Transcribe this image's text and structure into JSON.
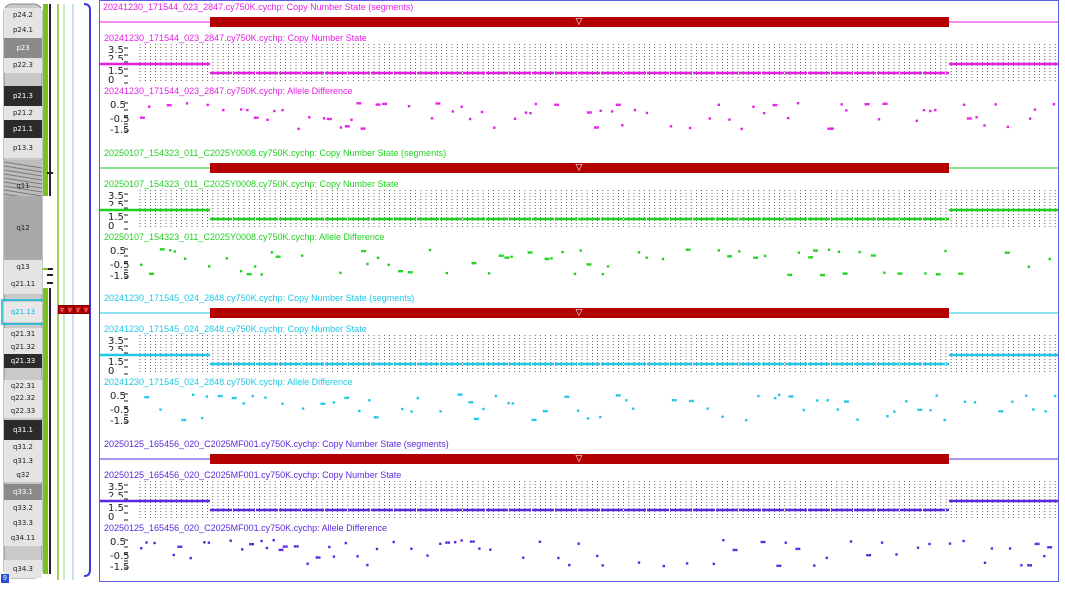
{
  "chromosome": {
    "number": "9",
    "bands": [
      {
        "name": "p24.2",
        "stain": "light"
      },
      {
        "name": "p24.1",
        "stain": "light"
      },
      {
        "name": "p23",
        "stain": "mid"
      },
      {
        "name": "p22.3",
        "stain": "light"
      },
      {
        "name": "p21.3",
        "stain": "dark"
      },
      {
        "name": "p21.2",
        "stain": "light"
      },
      {
        "name": "p21.1",
        "stain": "dark"
      },
      {
        "name": "p13.3",
        "stain": "light"
      },
      {
        "name": "q12",
        "stain": "gray"
      },
      {
        "name": "q13",
        "stain": "light"
      },
      {
        "name": "q21.11",
        "stain": "light"
      },
      {
        "name": "q21.13",
        "stain": "selected"
      },
      {
        "name": "q21.31",
        "stain": "light"
      },
      {
        "name": "q21.32",
        "stain": "light"
      },
      {
        "name": "q21.33",
        "stain": "dark"
      },
      {
        "name": "q22.31",
        "stain": "light"
      },
      {
        "name": "q22.32",
        "stain": "light"
      },
      {
        "name": "q22.33",
        "stain": "light"
      },
      {
        "name": "q31.1",
        "stain": "dark"
      },
      {
        "name": "q31.2",
        "stain": "light"
      },
      {
        "name": "q31.3",
        "stain": "light"
      },
      {
        "name": "q32",
        "stain": "light"
      },
      {
        "name": "q33.1",
        "stain": "mid"
      },
      {
        "name": "q33.2",
        "stain": "light"
      },
      {
        "name": "q33.3",
        "stain": "light"
      },
      {
        "name": "q34.11",
        "stain": "light"
      },
      {
        "name": "q34.3",
        "stain": "light"
      }
    ],
    "q12_label": "q12",
    "q11_label": "q11"
  },
  "marker_glyph": "▿",
  "samples": [
    {
      "color": "#e61ee6",
      "seg_title": "20241230_171544_023_2847.cy750K.cychp: Copy Number State (segments)",
      "cn_title": "20241230_171544_023_2847.cy750K.cychp: Copy Number State",
      "ad_title": "20241230_171544_023_2847.cy750K.cychp: Allele Difference"
    },
    {
      "color": "#1fd11f",
      "seg_title": "20250107_154323_011_C2025Y0008.cy750K.cychp: Copy Number State (segments)",
      "cn_title": "20250107_154323_011_C2025Y0008.cy750K.cychp: Copy Number State",
      "ad_title": "20250107_154323_011_C2025Y0008.cy750K.cychp: Allele Difference"
    },
    {
      "color": "#1ec8e6",
      "seg_title": "20241230_171545_024_2848.cy750K.cychp: Copy Number State (segments)",
      "cn_title": "20241230_171545_024_2848.cy750K.cychp: Copy Number State",
      "ad_title": "20241230_171545_024_2848.cy750K.cychp: Allele Difference"
    },
    {
      "color": "#5a28e0",
      "seg_title": "20250125_165456_020_C2025MF001.cy750K.cychp: Copy Number State (segments)",
      "cn_title": "20250125_165456_020_C2025MF001.cy750K.cychp: Copy Number State",
      "ad_title": "20250125_165456_020_C2025MF001.cy750K.cychp: Allele Difference"
    }
  ],
  "cn_axis": [
    "3.5",
    "1.5",
    "0"
  ],
  "cn_axis_partial": [
    "2.5"
  ],
  "ad_axis": [
    "0.5",
    "-0.5",
    "-1.5"
  ],
  "segment_arrow": "▽",
  "colors": {
    "segment_bar": "#b30000",
    "panel_border": "#5a5ee0",
    "side_green": "#7ac11c",
    "side_blue": "#3a3ad6"
  }
}
